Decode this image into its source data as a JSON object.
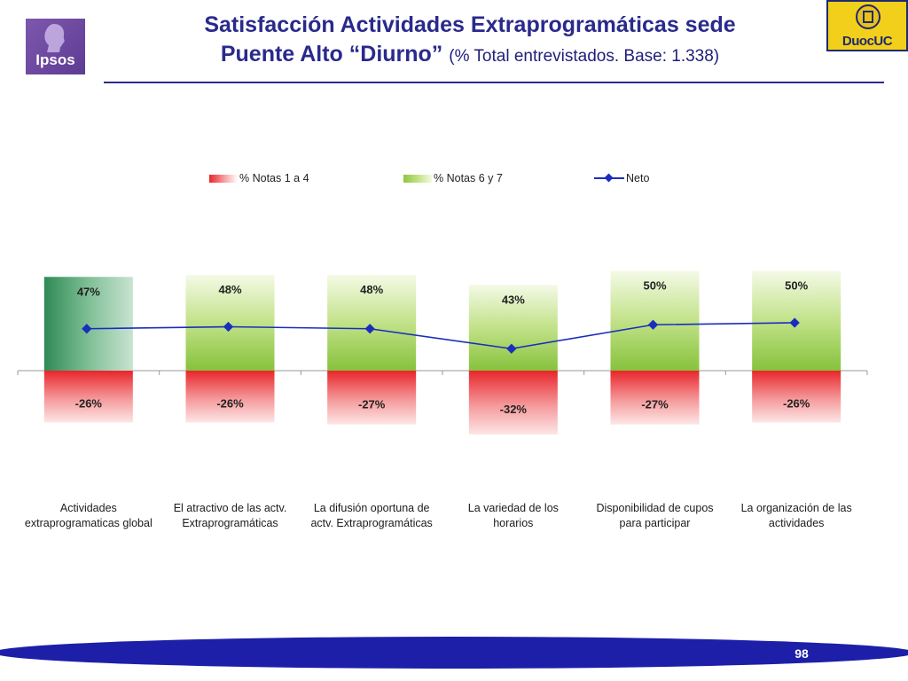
{
  "header": {
    "title_line1": "Satisfacción Actividades Extraprogramáticas sede",
    "title_line2": "Puente Alto “Diurno”",
    "title_note": "(% Total entrevistados. Base: 1.338)",
    "logo_left": "Ipsos",
    "logo_right": "DuocUC"
  },
  "colors": {
    "title": "#2a2a8c",
    "negative_bar": "#e8262b",
    "positive_bar": "#8dc63f",
    "first_positive_bar": "#2f8a55",
    "net_line": "#1a2ebd"
  },
  "chart_data": {
    "type": "bar",
    "categories": [
      "Actividades extraprogramaticas global",
      "El atractivo de las actv. Extraprogramáticas",
      "La difusión oportuna de actv. Extraprogramáticas",
      "La variedad de los horarios",
      "Disponibilidad de cupos para participar",
      "La organización de las actividades"
    ],
    "category_lines": [
      [
        "Actividades",
        "extraprogramaticas global"
      ],
      [
        "El atractivo de las actv.",
        "Extraprogramáticas"
      ],
      [
        "La difusión oportuna de",
        "actv. Extraprogramáticas"
      ],
      [
        "La variedad de los",
        "horarios"
      ],
      [
        "Disponibilidad de cupos",
        "para participar"
      ],
      [
        "La organización de las",
        "actividades"
      ]
    ],
    "series": [
      {
        "name": "% Notas 1 a 4",
        "values": [
          -26,
          -26,
          -27,
          -32,
          -27,
          -26
        ],
        "labels": [
          "-26%",
          "-26%",
          "-27%",
          "-32%",
          "-27%",
          "-26%"
        ]
      },
      {
        "name": "% Notas 6 y 7",
        "values": [
          47,
          48,
          48,
          43,
          50,
          50
        ],
        "labels": [
          "47%",
          "48%",
          "48%",
          "43%",
          "50%",
          "50%"
        ]
      },
      {
        "name": "Neto",
        "type": "line",
        "values": [
          21,
          22,
          21,
          11,
          23,
          24
        ]
      }
    ],
    "ylim": [
      -40,
      60
    ],
    "legend_position": "top",
    "grid": false
  },
  "footer": {
    "page_number": "98"
  }
}
